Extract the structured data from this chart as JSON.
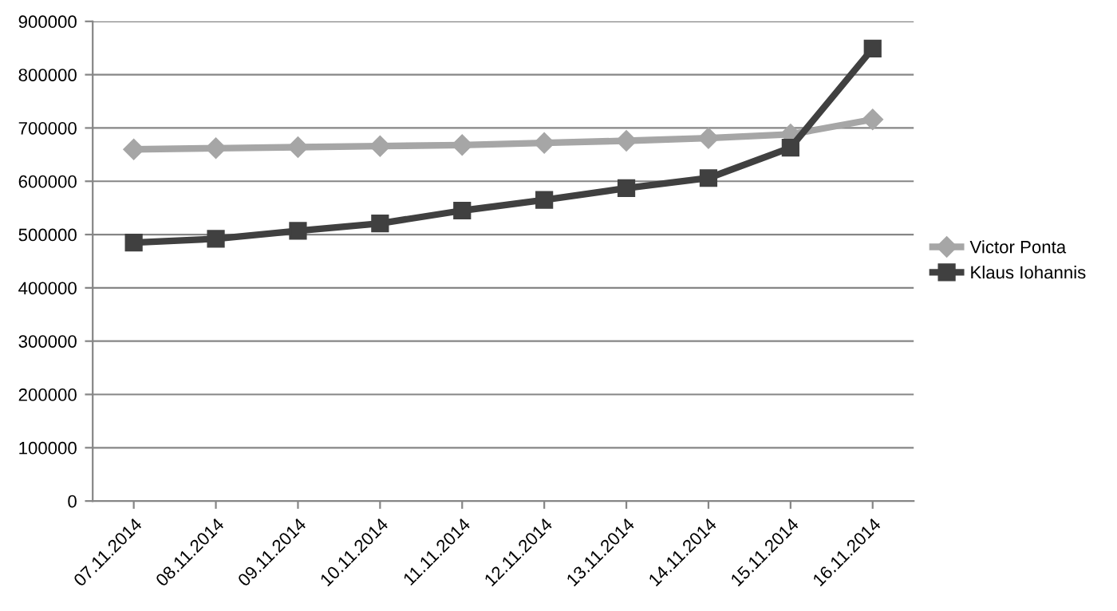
{
  "chart_data": {
    "type": "line",
    "categories": [
      "07.11.2014",
      "08.11.2014",
      "09.11.2014",
      "10.11.2014",
      "11.11.2014",
      "12.11.2014",
      "13.11.2014",
      "14.11.2014",
      "15.11.2014",
      "16.11.2014"
    ],
    "series": [
      {
        "name": "Victor Ponta",
        "color": "#a6a6a6",
        "marker": "diamond",
        "values": [
          660000,
          662000,
          664000,
          666000,
          668000,
          672000,
          676000,
          681000,
          688000,
          716000
        ]
      },
      {
        "name": "Klaus Iohannis",
        "color": "#404040",
        "marker": "square",
        "values": [
          485000,
          492000,
          507000,
          521000,
          545000,
          565000,
          587000,
          606000,
          663000,
          849000
        ]
      }
    ],
    "ylim": [
      0,
      900000
    ],
    "yticks": [
      0,
      100000,
      200000,
      300000,
      400000,
      500000,
      600000,
      700000,
      800000,
      900000
    ],
    "grid": "y",
    "legend": "right",
    "line_style": "solid"
  }
}
